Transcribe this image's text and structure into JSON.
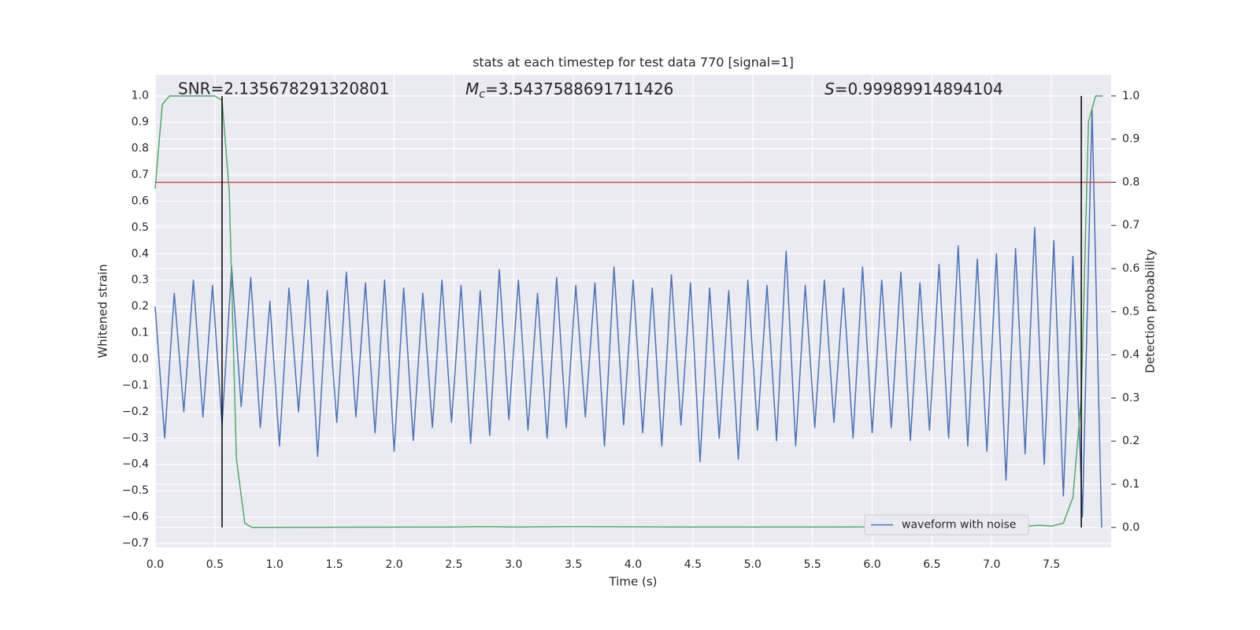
{
  "chart_data": {
    "type": "line",
    "title": "stats at each timestep for test data 770 [signal=1]",
    "xlabel": "Time (s)",
    "ylabel": "Whitened strain",
    "y2label": "Detection probability",
    "annotations": [
      {
        "text": "SNR=2.135678291320801"
      },
      {
        "symbol": "M",
        "subscript": "c",
        "text": "=3.5437588691711426"
      },
      {
        "symbol": "S",
        "text": "=0.99989914894104"
      }
    ],
    "xlim": [
      0,
      8.0
    ],
    "ylim": [
      -0.715,
      1.08
    ],
    "y2lim": [
      -0.046,
      1.049
    ],
    "xticks": [
      {
        "value": 0,
        "label": "0.0"
      },
      0.5,
      {
        "value": 1,
        "label": "1.0"
      },
      1.5,
      {
        "value": 2,
        "label": "2.0"
      },
      2.5,
      {
        "value": 3,
        "label": "3.0"
      },
      3.5,
      {
        "value": 4,
        "label": "4.0"
      },
      4.5,
      {
        "value": 5,
        "label": "5.0"
      },
      5.5,
      {
        "value": 6,
        "label": "6.0"
      },
      6.5,
      {
        "value": 7,
        "label": "7.0"
      },
      7.5
    ],
    "yticks": [
      {
        "value": -0.7,
        "label": "−0.7"
      },
      {
        "value": -0.6,
        "label": "−0.6"
      },
      {
        "value": -0.5,
        "label": "−0.5"
      },
      {
        "value": -0.4,
        "label": "−0.4"
      },
      {
        "value": -0.3,
        "label": "−0.3"
      },
      {
        "value": -0.2,
        "label": "−0.2"
      },
      {
        "value": -0.1,
        "label": "−0.1"
      },
      {
        "value": 0,
        "label": "0.0"
      },
      0.1,
      0.2,
      0.3,
      0.4,
      0.5,
      0.6,
      0.7,
      0.8,
      0.9,
      {
        "value": 1,
        "label": "1.0"
      }
    ],
    "y2ticks": [
      {
        "value": 0,
        "label": "0.0"
      },
      0.1,
      0.2,
      0.3,
      0.4,
      0.5,
      0.6,
      0.7,
      0.8,
      0.9,
      {
        "value": 1,
        "label": "1.0"
      }
    ],
    "grid": true,
    "legend": "lower right",
    "series": [
      {
        "name": "waveform with noise",
        "color": "#4c72b0",
        "x": [
          0,
          0.08,
          0.16,
          0.24,
          0.32,
          0.4,
          0.48,
          0.56,
          0.64,
          0.72,
          0.8,
          0.88,
          0.96,
          1.04,
          1.12,
          1.2,
          1.28,
          1.36,
          1.44,
          1.52,
          1.6,
          1.68,
          1.76,
          1.84,
          1.92,
          2.0,
          2.08,
          2.16,
          2.24,
          2.32,
          2.4,
          2.48,
          2.56,
          2.64,
          2.72,
          2.8,
          2.88,
          2.96,
          3.04,
          3.12,
          3.2,
          3.28,
          3.36,
          3.44,
          3.52,
          3.6,
          3.68,
          3.76,
          3.84,
          3.92,
          4.0,
          4.08,
          4.16,
          4.24,
          4.32,
          4.4,
          4.48,
          4.56,
          4.64,
          4.72,
          4.8,
          4.88,
          4.96,
          5.04,
          5.12,
          5.2,
          5.28,
          5.36,
          5.44,
          5.52,
          5.6,
          5.68,
          5.76,
          5.84,
          5.92,
          6.0,
          6.08,
          6.16,
          6.24,
          6.32,
          6.4,
          6.48,
          6.56,
          6.64,
          6.72,
          6.8,
          6.88,
          6.96,
          7.04,
          7.12,
          7.2,
          7.28,
          7.36,
          7.44,
          7.52,
          7.6,
          7.68,
          7.76,
          7.84,
          7.92
        ],
        "values": [
          0.2,
          -0.3,
          0.25,
          -0.2,
          0.3,
          -0.22,
          0.28,
          -0.25,
          0.35,
          -0.18,
          0.31,
          -0.26,
          0.22,
          -0.33,
          0.27,
          -0.2,
          0.3,
          -0.37,
          0.26,
          -0.24,
          0.33,
          -0.22,
          0.29,
          -0.28,
          0.3,
          -0.35,
          0.27,
          -0.31,
          0.25,
          -0.26,
          0.3,
          -0.24,
          0.28,
          -0.32,
          0.26,
          -0.29,
          0.34,
          -0.23,
          0.3,
          -0.27,
          0.25,
          -0.3,
          0.31,
          -0.26,
          0.28,
          -0.22,
          0.29,
          -0.33,
          0.35,
          -0.25,
          0.3,
          -0.28,
          0.27,
          -0.33,
          0.32,
          -0.25,
          0.29,
          -0.39,
          0.27,
          -0.3,
          0.26,
          -0.38,
          0.3,
          -0.27,
          0.28,
          -0.31,
          0.41,
          -0.33,
          0.28,
          -0.26,
          0.3,
          -0.24,
          0.27,
          -0.3,
          0.35,
          -0.28,
          0.3,
          -0.26,
          0.33,
          -0.31,
          0.29,
          -0.27,
          0.36,
          -0.3,
          0.43,
          -0.33,
          0.38,
          -0.35,
          0.4,
          -0.46,
          0.42,
          -0.36,
          0.5,
          -0.4,
          0.45,
          -0.52,
          0.39,
          -0.6,
          0.95,
          -0.64
        ]
      },
      {
        "color": "#55a868",
        "axis": "y2",
        "x": [
          0,
          0.06,
          0.12,
          0.5,
          0.56,
          0.62,
          0.68,
          0.75,
          0.81,
          2.5,
          2.7,
          3.0,
          3.5,
          4.5,
          5.5,
          7.2,
          7.3,
          7.4,
          7.5,
          7.6,
          7.68,
          7.75,
          7.81,
          7.87,
          7.93
        ],
        "values": [
          0.785,
          0.98,
          1.0,
          1.0,
          0.99,
          0.78,
          0.16,
          0.01,
          0.0,
          0.001,
          0.002,
          0.001,
          0.002,
          0.001,
          0.001,
          0.002,
          0.003,
          0.005,
          0.003,
          0.01,
          0.07,
          0.3,
          0.94,
          1.0,
          1.0
        ]
      }
    ],
    "hline": {
      "value": 0.8,
      "axis": "y2",
      "color": "#c44e52"
    },
    "vlines": {
      "x": [
        0.56,
        7.75
      ],
      "ymin": 0,
      "ymax": 1,
      "axis": "y2",
      "color": "#000000"
    }
  }
}
